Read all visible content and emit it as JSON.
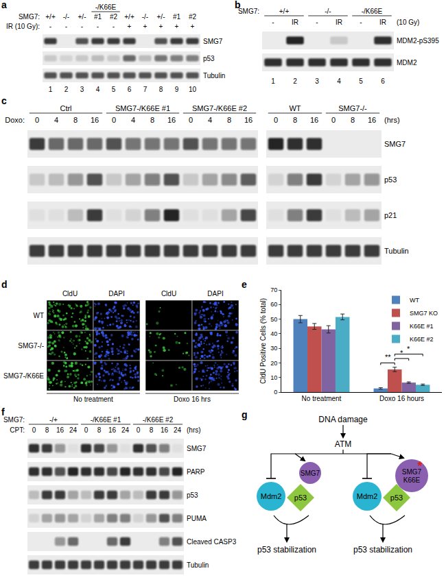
{
  "panels": {
    "a": {
      "label": "a",
      "header_rows": [
        {
          "items": [
            [
              "-/K66E",
              3,
              4
            ]
          ]
        },
        {
          "label": "SMG7:",
          "items": [
            [
              "+/+",
              0
            ],
            [
              "-/-",
              1
            ],
            [
              "+/-",
              2
            ],
            [
              "#1",
              3
            ],
            [
              "#2",
              4
            ],
            [
              "+/+",
              5
            ],
            [
              "-/-",
              6
            ],
            [
              "+/-",
              7
            ],
            [
              "#1",
              8
            ],
            [
              "#2",
              9
            ]
          ]
        },
        {
          "label": "IR (10 Gy):",
          "items": [
            [
              "-",
              0
            ],
            [
              "-",
              1
            ],
            [
              "-",
              2
            ],
            [
              "-",
              3
            ],
            [
              "-",
              4
            ],
            [
              "+",
              5
            ],
            [
              "+",
              6
            ],
            [
              "+",
              7
            ],
            [
              "+",
              8
            ],
            [
              "+",
              9
            ]
          ]
        }
      ],
      "row_names": [
        "SMG7",
        "p53",
        "Tubulin"
      ],
      "blots": [
        {
          "lanes": 10,
          "bands": [
            [
              0.8,
              0,
              0.7,
              0.8,
              0.8,
              0.8,
              0,
              0.7,
              0.8,
              0.8
            ],
            [
              0.15,
              0.1,
              0.15,
              0.2,
              0.15,
              0.6,
              0.2,
              0.55,
              0.5,
              0.5
            ],
            [
              0.7,
              0.7,
              0.7,
              0.7,
              0.7,
              0.7,
              0.7,
              0.7,
              0.7,
              0.7
            ]
          ]
        }
      ],
      "lane_numbers": [
        1,
        2,
        3,
        4,
        5,
        6,
        7,
        8,
        9,
        10
      ]
    },
    "b": {
      "label": "b",
      "header_rows": [
        {
          "label": "SMG7:",
          "items": [
            [
              "+/+",
              0,
              1
            ],
            [
              "-/-",
              2,
              3
            ],
            [
              "-/K66E",
              4,
              5
            ]
          ]
        },
        {
          "items": [
            [
              "-",
              0
            ],
            [
              "IR",
              1
            ],
            [
              "-",
              2
            ],
            [
              "IR",
              3
            ],
            [
              "-",
              4
            ],
            [
              "IR",
              5
            ]
          ],
          "trailing": "(10 Gy)"
        }
      ],
      "row_names": [
        "MDM2-pS395",
        "MDM2"
      ],
      "blots": [
        {
          "lanes": 6,
          "bands": [
            [
              0,
              0.9,
              0,
              0.15,
              0,
              0.85
            ],
            [
              0.85,
              0.85,
              0.85,
              0.85,
              0.85,
              0.85
            ]
          ]
        }
      ],
      "lane_numbers": [
        1,
        2,
        3,
        4,
        5,
        6
      ]
    },
    "c": {
      "label": "c",
      "header_rows": [
        {
          "items": [
            [
              "Ctrl",
              0,
              3
            ],
            [
              "SMG7-/K66E #1",
              4,
              7
            ],
            [
              "SMG7-/K66E #2",
              8,
              11
            ],
            [
              "WT",
              12,
              14
            ],
            [
              "SMG7-/-",
              15,
              17
            ]
          ]
        },
        {
          "label": "Doxo:",
          "items": [
            [
              "0",
              0
            ],
            [
              "4",
              1
            ],
            [
              "8",
              2
            ],
            [
              "16",
              3
            ],
            [
              "0",
              4
            ],
            [
              "4",
              5
            ],
            [
              "8",
              6
            ],
            [
              "16",
              7
            ],
            [
              "0",
              8
            ],
            [
              "4",
              9
            ],
            [
              "8",
              10
            ],
            [
              "16",
              11
            ],
            [
              "0",
              12
            ],
            [
              "8",
              13
            ],
            [
              "16",
              14
            ],
            [
              "0",
              15
            ],
            [
              "8",
              16
            ],
            [
              "16",
              17
            ]
          ],
          "trailing": "(hrs)"
        }
      ],
      "row_names": [
        "SMG7",
        "p53",
        "p21",
        "Tubulin"
      ],
      "blots": [
        {
          "lanes": 12,
          "bands": [
            [
              0.8,
              0.6,
              0.6,
              0.6,
              0.7,
              0.55,
              0.55,
              0.55,
              0.7,
              0.55,
              0.55,
              0.55
            ],
            [
              0.15,
              0.2,
              0.4,
              0.7,
              0.15,
              0.3,
              0.5,
              0.7,
              0.15,
              0.3,
              0.45,
              0.65
            ],
            [
              0.05,
              0.05,
              0.2,
              0.8,
              0.05,
              0.1,
              0.5,
              0.9,
              0.05,
              0.05,
              0.3,
              0.75
            ],
            [
              0.8,
              0.8,
              0.8,
              0.8,
              0.8,
              0.8,
              0.8,
              0.8,
              0.8,
              0.8,
              0.8,
              0.8
            ]
          ]
        },
        {
          "lanes": 6,
          "bands": [
            [
              0.9,
              0.85,
              0.85,
              0,
              0,
              0
            ],
            [
              0.1,
              0.5,
              0.8,
              0.1,
              0.3,
              0.4
            ],
            [
              0.05,
              0.5,
              0.8,
              0.05,
              0.2,
              0.3
            ],
            [
              0.8,
              0.8,
              0.8,
              0.8,
              0.8,
              0.8
            ]
          ]
        }
      ]
    },
    "d": {
      "label": "d",
      "channels": [
        "CldU",
        "DAPI",
        "CldU",
        "DAPI"
      ],
      "rows": [
        "WT",
        "SMG7-/-",
        "SMG7-/K66E"
      ],
      "conditions": [
        "No treatment",
        "Doxo 16 hrs"
      ]
    },
    "e": {
      "label": "e"
    },
    "f": {
      "label": "f",
      "header_rows": [
        {
          "label": "SMG7:",
          "items": [
            [
              "-/+",
              0,
              3
            ],
            [
              "-/K66E #1",
              4,
              7
            ],
            [
              "-/K66E #2",
              8,
              11
            ]
          ]
        },
        {
          "label": "CPT:",
          "items": [
            [
              "0",
              0
            ],
            [
              "8",
              1
            ],
            [
              "16",
              2
            ],
            [
              "24",
              3
            ],
            [
              "0",
              4
            ],
            [
              "8",
              5
            ],
            [
              "16",
              6
            ],
            [
              "24",
              7
            ],
            [
              "0",
              8
            ],
            [
              "8",
              9
            ],
            [
              "16",
              10
            ],
            [
              "24",
              11
            ]
          ],
          "trailing": "(hrs)"
        }
      ],
      "row_names": [
        "SMG7",
        "PARP",
        "p53",
        "PUMA",
        "Cleaved CASP3",
        "Tubulin"
      ],
      "blots": [
        {
          "lanes": 12,
          "bands": [
            [
              0.85,
              0.8,
              0.4,
              0.05,
              0.85,
              0.75,
              0.4,
              0.05,
              0.85,
              0.7,
              0.5,
              0.05
            ],
            [
              0.85,
              0.85,
              0.7,
              0.9,
              0.85,
              0.85,
              0.75,
              0.9,
              0.85,
              0.85,
              0.75,
              0.9
            ],
            [
              0.2,
              0.8,
              0.8,
              0.3,
              0.2,
              0.8,
              0.8,
              0.3,
              0.2,
              0.8,
              0.8,
              0.4
            ],
            [
              0.1,
              0.3,
              0.4,
              0.3,
              0.1,
              0.3,
              0.5,
              0.5,
              0.1,
              0.4,
              0.7,
              0.5
            ],
            [
              0,
              0,
              0.4,
              0.6,
              0,
              0,
              0.6,
              0.8,
              0,
              0,
              0.5,
              0.7
            ],
            [
              0.8,
              0.8,
              0.8,
              0.8,
              0.8,
              0.8,
              0.8,
              0.8,
              0.8,
              0.8,
              0.8,
              0.8
            ]
          ]
        }
      ]
    },
    "g": {
      "label": "g",
      "trigger": "DNA damage",
      "kinase": "ATM",
      "branches": [
        {
          "smg7": [
            "SMG7"
          ],
          "mdm2": "Mdm2",
          "p53": "p53",
          "outcome": "p53 stabilization"
        },
        {
          "smg7": [
            "SMG7",
            "K66E"
          ],
          "mark": "*",
          "mdm2": "Mdm2",
          "p53": "p53",
          "outcome": "p53 stabilization"
        }
      ]
    }
  },
  "chart_data": {
    "type": "bar",
    "categories": [
      "No treatment",
      "Doxo 16 hours"
    ],
    "ylabel": "CldU Positive Cells (% total)",
    "ylim": [
      0,
      70
    ],
    "yticks": [
      0,
      10,
      20,
      30,
      40,
      50,
      60,
      70
    ],
    "grid": false,
    "legend": "top right",
    "series": [
      {
        "name": "WT",
        "color": "#4f81bd",
        "values": [
          50,
          2.5
        ],
        "error": [
          2.5,
          0.5
        ]
      },
      {
        "name": "SMG7 KO",
        "color": "#c0504d",
        "values": [
          45,
          15.5
        ],
        "error": [
          2,
          1.5
        ]
      },
      {
        "name": "K66E #1",
        "color": "#8064a2",
        "values": [
          43,
          6.5
        ],
        "error": [
          2.5,
          0.5
        ]
      },
      {
        "name": "K66E #2",
        "color": "#4bacc6",
        "values": [
          51.5,
          5
        ],
        "error": [
          2,
          0.5
        ]
      }
    ],
    "annotations": [
      {
        "text": "**",
        "category": 1,
        "between": [
          "WT",
          "SMG7 KO"
        ],
        "y": 20
      },
      {
        "text": "*",
        "category": 1,
        "between": [
          "SMG7 KO",
          "K66E #1"
        ],
        "y": 23
      },
      {
        "text": "*",
        "category": 1,
        "between": [
          "SMG7 KO",
          "K66E #2"
        ],
        "y": 26
      }
    ]
  }
}
